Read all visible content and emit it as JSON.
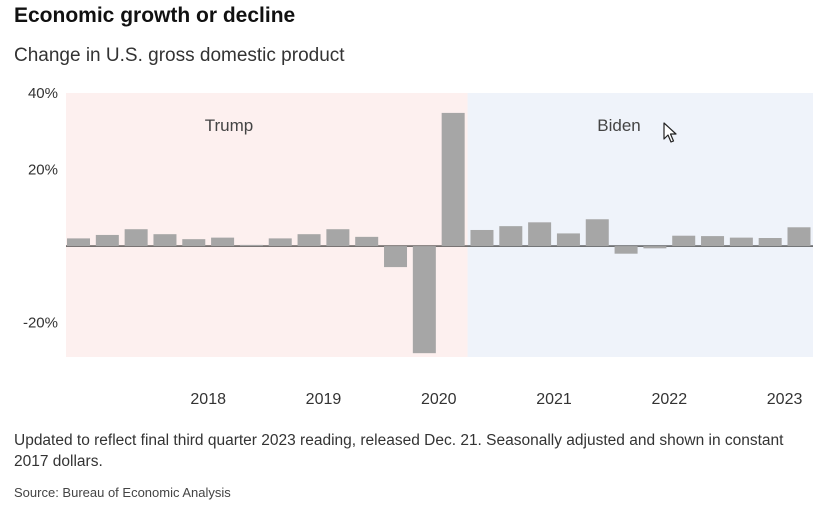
{
  "header": {
    "title": "Economic growth or decline",
    "subtitle": "Change in U.S. gross domestic product"
  },
  "chart_data": {
    "type": "bar",
    "title": "Economic growth or decline",
    "subtitle": "Change in U.S. gross domestic product",
    "ylim": [
      -29,
      40
    ],
    "y_ticks": [
      {
        "value": 40,
        "label": "40%"
      },
      {
        "value": 20,
        "label": "20%"
      },
      {
        "value": -20,
        "label": "-20%"
      }
    ],
    "x_tick_labels": [
      "2018",
      "2019",
      "2020",
      "2021",
      "2022",
      "2023"
    ],
    "categories": [
      "2017 Q2",
      "2017 Q3",
      "2017 Q4",
      "2018 Q1",
      "2018 Q2",
      "2018 Q3",
      "2018 Q4",
      "2019 Q1",
      "2019 Q2",
      "2019 Q3",
      "2019 Q4",
      "2020 Q1",
      "2020 Q2",
      "2020 Q3",
      "2020 Q4",
      "2021 Q1",
      "2021 Q2",
      "2021 Q3",
      "2021 Q4",
      "2022 Q1",
      "2022 Q2",
      "2022 Q3",
      "2022 Q4",
      "2023 Q1",
      "2023 Q2",
      "2023 Q3"
    ],
    "values": [
      2.0,
      2.9,
      4.4,
      3.1,
      1.8,
      2.2,
      0.3,
      2.0,
      3.1,
      4.4,
      2.4,
      -5.5,
      -28.0,
      34.8,
      4.2,
      5.2,
      6.2,
      3.3,
      7.0,
      -2.0,
      -0.6,
      2.7,
      2.6,
      2.2,
      2.1,
      4.9
    ],
    "regions": [
      {
        "label": "Trump",
        "start": "2017 Q2",
        "end": "2020 Q3",
        "color": "#fdf0ef"
      },
      {
        "label": "Biden",
        "start": "2020 Q4",
        "end": "2023 Q3",
        "color": "#eff3fa"
      }
    ],
    "bar_color": "#a6a6a6"
  },
  "footer": {
    "note": "Updated to reflect final third quarter 2023 reading, released Dec. 21. Seasonally adjusted and shown in constant 2017 dollars.",
    "source": "Source: Bureau of Economic Analysis"
  }
}
